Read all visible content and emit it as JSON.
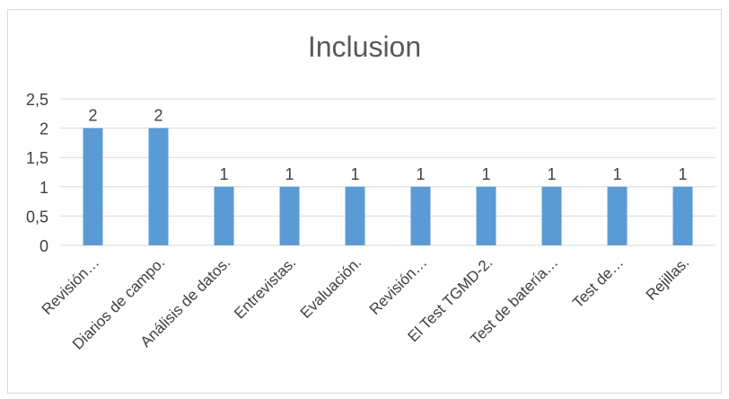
{
  "chart_data": {
    "type": "bar",
    "title": "Inclusion",
    "categories": [
      "Revisión…",
      "Diarios de campo.",
      "Análisis de datos.",
      "Entrevistas.",
      "Evaluación.",
      "Revisión…",
      "El Test TGMD-2.",
      "Test de batería…",
      "Test de…",
      "Rejillas."
    ],
    "values": [
      2,
      2,
      1,
      1,
      1,
      1,
      1,
      1,
      1,
      1
    ],
    "data_labels": [
      "2",
      "2",
      "1",
      "1",
      "1",
      "1",
      "1",
      "1",
      "1",
      "1"
    ],
    "y_ticks": [
      "0",
      "0,5",
      "1",
      "1,5",
      "2",
      "2,5"
    ],
    "ylim": [
      0,
      2.5
    ],
    "grid": true,
    "legend": "none",
    "bar_color": "#5b9bd5",
    "grid_color": "#d9d9d9",
    "text_color": "#404040"
  }
}
